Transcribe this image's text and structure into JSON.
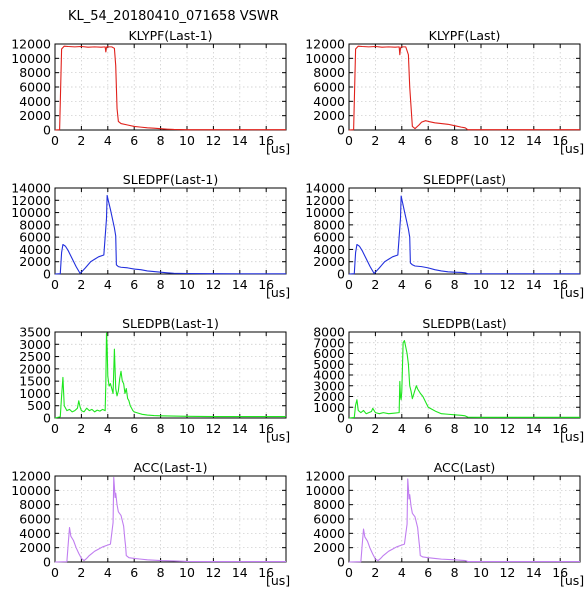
{
  "page": {
    "title": "KL_54_20180410_071658 VSWR"
  },
  "colors": {
    "red": "#e0211b",
    "blue": "#2230dd",
    "green": "#1ee61e",
    "violet": "#c07ef0"
  },
  "chart_data": [
    {
      "type": "line",
      "title": "KLYPF(Last-1)",
      "color": "red",
      "xlim": [
        0,
        17.5
      ],
      "ylim": [
        0,
        12000
      ],
      "xticks": [
        0,
        2,
        4,
        6,
        8,
        10,
        12,
        14,
        16
      ],
      "yticks": [
        0,
        2000,
        4000,
        6000,
        8000,
        10000,
        12000
      ],
      "xunit": "[us]",
      "series": [
        {
          "x": [
            0,
            0.35,
            0.5,
            0.7,
            1.0,
            1.5,
            2.0,
            2.5,
            3.0,
            3.5,
            3.8,
            3.85,
            3.9,
            3.95,
            4.0,
            4.3,
            4.5,
            4.6,
            4.7,
            4.8,
            5.0,
            5.5,
            6.0,
            6.5,
            7.0,
            7.5,
            8.0,
            8.5,
            9.0,
            10,
            12,
            14,
            16,
            17.5
          ],
          "y": [
            0,
            50,
            11300,
            11700,
            11650,
            11600,
            11650,
            11550,
            11600,
            11550,
            11600,
            10900,
            11500,
            11650,
            11600,
            11600,
            11400,
            9000,
            3000,
            1200,
            900,
            700,
            500,
            400,
            300,
            250,
            180,
            120,
            80,
            50,
            40,
            40,
            40,
            40
          ]
        }
      ]
    },
    {
      "type": "line",
      "title": "KLYPF(Last)",
      "color": "red",
      "xlim": [
        0,
        17.5
      ],
      "ylim": [
        0,
        12000
      ],
      "xticks": [
        0,
        2,
        4,
        6,
        8,
        10,
        12,
        14,
        16
      ],
      "yticks": [
        0,
        2000,
        4000,
        6000,
        8000,
        10000,
        12000
      ],
      "xunit": "[us]",
      "series": [
        {
          "x": [
            0,
            0.35,
            0.5,
            0.7,
            1.0,
            1.5,
            2.0,
            2.5,
            3.0,
            3.5,
            3.8,
            3.85,
            3.9,
            3.95,
            4.0,
            4.3,
            4.5,
            4.6,
            4.8,
            5.0,
            5.3,
            5.5,
            5.8,
            6.0,
            6.5,
            7.0,
            7.5,
            8.0,
            8.5,
            8.8,
            9.0,
            10,
            12,
            14,
            16,
            17.5
          ],
          "y": [
            0,
            50,
            11300,
            11700,
            11650,
            11600,
            11650,
            11550,
            11600,
            11550,
            11600,
            10500,
            11400,
            11600,
            11600,
            11600,
            10500,
            6000,
            500,
            200,
            700,
            1100,
            1300,
            1200,
            1000,
            900,
            800,
            600,
            400,
            300,
            40,
            40,
            40,
            40,
            40,
            40
          ]
        }
      ]
    },
    {
      "type": "line",
      "title": "SLEDPF(Last-1)",
      "color": "blue",
      "xlim": [
        0,
        17.5
      ],
      "ylim": [
        0,
        14000
      ],
      "xticks": [
        0,
        2,
        4,
        6,
        8,
        10,
        12,
        14,
        16
      ],
      "yticks": [
        0,
        2000,
        4000,
        6000,
        8000,
        10000,
        12000,
        14000
      ],
      "xunit": "[us]",
      "series": [
        {
          "x": [
            0,
            0.4,
            0.5,
            0.6,
            0.8,
            1.0,
            1.3,
            1.6,
            1.9,
            2.0,
            2.3,
            2.7,
            3.0,
            3.3,
            3.7,
            3.9,
            3.95,
            4.0,
            4.2,
            4.5,
            4.6,
            4.65,
            4.8,
            5.0,
            5.5,
            6.0,
            6.5,
            7.0,
            7.5,
            8.0,
            8.5,
            9.0,
            10,
            12,
            14,
            16,
            17.5
          ],
          "y": [
            0,
            50,
            3500,
            4800,
            4500,
            3800,
            2500,
            1200,
            100,
            300,
            1000,
            2000,
            2400,
            2800,
            3100,
            9000,
            12800,
            12300,
            10500,
            7500,
            6200,
            1500,
            1200,
            1100,
            1000,
            800,
            700,
            500,
            400,
            300,
            200,
            120,
            80,
            50,
            40,
            40,
            40
          ]
        }
      ]
    },
    {
      "type": "line",
      "title": "SLEDPF(Last)",
      "color": "blue",
      "xlim": [
        0,
        17.5
      ],
      "ylim": [
        0,
        14000
      ],
      "xticks": [
        0,
        2,
        4,
        6,
        8,
        10,
        12,
        14,
        16
      ],
      "yticks": [
        0,
        2000,
        4000,
        6000,
        8000,
        10000,
        12000,
        14000
      ],
      "xunit": "[us]",
      "series": [
        {
          "x": [
            0,
            0.4,
            0.5,
            0.6,
            0.8,
            1.0,
            1.3,
            1.6,
            1.9,
            2.0,
            2.3,
            2.7,
            3.0,
            3.3,
            3.7,
            3.9,
            3.95,
            4.0,
            4.2,
            4.5,
            4.6,
            4.65,
            4.8,
            5.0,
            5.5,
            6.0,
            6.5,
            7.0,
            7.5,
            8.0,
            8.5,
            8.8,
            9.0,
            10,
            12,
            14,
            16,
            17.5
          ],
          "y": [
            0,
            50,
            3500,
            4800,
            4500,
            3800,
            2500,
            1200,
            100,
            300,
            1000,
            2000,
            2400,
            2800,
            3100,
            9000,
            12700,
            12200,
            10200,
            7300,
            6000,
            1800,
            1500,
            1300,
            1200,
            1000,
            700,
            500,
            350,
            300,
            250,
            200,
            40,
            40,
            40,
            40,
            40,
            40
          ]
        }
      ]
    },
    {
      "type": "line",
      "title": "SLEDPB(Last-1)",
      "color": "green",
      "xlim": [
        0,
        17.5
      ],
      "ylim": [
        0,
        3500
      ],
      "xticks": [
        0,
        2,
        4,
        6,
        8,
        10,
        12,
        14,
        16
      ],
      "yticks": [
        0,
        500,
        1000,
        1500,
        2000,
        2500,
        3000,
        3500
      ],
      "xunit": "[us]",
      "series": [
        {
          "x": [
            0,
            0.4,
            0.5,
            0.6,
            0.7,
            0.9,
            1.1,
            1.3,
            1.5,
            1.7,
            1.8,
            1.9,
            2.0,
            2.2,
            2.4,
            2.6,
            2.8,
            3.0,
            3.2,
            3.4,
            3.6,
            3.8,
            3.85,
            3.9,
            3.95,
            4.0,
            4.1,
            4.2,
            4.4,
            4.5,
            4.6,
            4.7,
            4.8,
            4.9,
            5.0,
            5.1,
            5.2,
            5.3,
            5.4,
            5.5,
            5.6,
            5.7,
            5.8,
            5.9,
            6.0,
            6.3,
            6.6,
            7.0,
            7.5,
            8.0,
            9.0,
            10,
            12,
            14,
            16,
            17.5
          ],
          "y": [
            0,
            50,
            900,
            1650,
            500,
            300,
            350,
            250,
            300,
            400,
            700,
            450,
            300,
            250,
            400,
            300,
            350,
            250,
            320,
            280,
            350,
            300,
            1400,
            3450,
            2900,
            1700,
            1300,
            1400,
            1000,
            2800,
            1200,
            900,
            1100,
            1600,
            1900,
            1500,
            1400,
            1000,
            1200,
            800,
            700,
            500,
            400,
            300,
            250,
            200,
            150,
            120,
            100,
            90,
            80,
            70,
            60,
            60,
            60,
            60
          ]
        }
      ]
    },
    {
      "type": "line",
      "title": "SLEDPB(Last)",
      "color": "green",
      "xlim": [
        0,
        17.5
      ],
      "ylim": [
        0,
        8000
      ],
      "xticks": [
        0,
        2,
        4,
        6,
        8,
        10,
        12,
        14,
        16
      ],
      "yticks": [
        0,
        1000,
        2000,
        3000,
        4000,
        5000,
        6000,
        7000,
        8000
      ],
      "xunit": "[us]",
      "series": [
        {
          "x": [
            0,
            0.4,
            0.5,
            0.6,
            0.7,
            0.9,
            1.1,
            1.3,
            1.5,
            1.7,
            1.8,
            1.9,
            2.0,
            2.3,
            2.6,
            3.0,
            3.4,
            3.8,
            3.85,
            3.9,
            3.95,
            4.0,
            4.1,
            4.2,
            4.3,
            4.4,
            4.5,
            4.6,
            4.7,
            4.8,
            4.9,
            5.0,
            5.1,
            5.2,
            5.4,
            5.6,
            5.8,
            6.0,
            6.3,
            6.6,
            7.0,
            7.5,
            8.0,
            8.5,
            8.8,
            9.0,
            10,
            12,
            14,
            16,
            17.5
          ],
          "y": [
            0,
            50,
            1200,
            1700,
            700,
            500,
            700,
            400,
            500,
            600,
            900,
            700,
            500,
            400,
            500,
            400,
            450,
            500,
            3400,
            2000,
            1700,
            2500,
            7000,
            7200,
            6600,
            6000,
            5000,
            3000,
            2500,
            1800,
            2200,
            2600,
            3000,
            2700,
            2300,
            2000,
            1500,
            1000,
            800,
            600,
            400,
            350,
            300,
            250,
            200,
            80,
            60,
            60,
            60,
            60,
            60
          ]
        }
      ]
    },
    {
      "type": "line",
      "title": "ACC(Last-1)",
      "color": "violet",
      "xlim": [
        0,
        17.5
      ],
      "ylim": [
        0,
        12000
      ],
      "xticks": [
        0,
        2,
        4,
        6,
        8,
        10,
        12,
        14,
        16
      ],
      "yticks": [
        0,
        2000,
        4000,
        6000,
        8000,
        10000,
        12000
      ],
      "xunit": "[us]",
      "series": [
        {
          "x": [
            0,
            0.9,
            1.0,
            1.1,
            1.2,
            1.4,
            1.6,
            1.8,
            2.0,
            2.2,
            2.4,
            2.6,
            2.8,
            3.0,
            3.3,
            3.6,
            3.9,
            4.2,
            4.4,
            4.45,
            4.5,
            4.55,
            4.6,
            4.7,
            4.8,
            5.0,
            5.2,
            5.3,
            5.35,
            5.4,
            5.6,
            6.0,
            6.5,
            7.0,
            8.0,
            9.0,
            10,
            12,
            14,
            16,
            17.5
          ],
          "y": [
            0,
            50,
            2500,
            4800,
            3600,
            3000,
            2000,
            1200,
            500,
            200,
            500,
            900,
            1200,
            1500,
            1800,
            2100,
            2300,
            2500,
            5500,
            11800,
            10500,
            9000,
            9600,
            8000,
            7000,
            6500,
            5000,
            3000,
            2200,
            900,
            600,
            500,
            400,
            300,
            200,
            150,
            80,
            60,
            60,
            60,
            60
          ]
        }
      ]
    },
    {
      "type": "line",
      "title": "ACC(Last)",
      "color": "violet",
      "xlim": [
        0,
        17.5
      ],
      "ylim": [
        0,
        12000
      ],
      "xticks": [
        0,
        2,
        4,
        6,
        8,
        10,
        12,
        14,
        16
      ],
      "yticks": [
        0,
        2000,
        4000,
        6000,
        8000,
        10000,
        12000
      ],
      "xunit": "[us]",
      "series": [
        {
          "x": [
            0,
            0.9,
            1.0,
            1.1,
            1.2,
            1.4,
            1.6,
            1.8,
            2.0,
            2.2,
            2.4,
            2.6,
            2.8,
            3.0,
            3.3,
            3.6,
            3.9,
            4.2,
            4.4,
            4.45,
            4.5,
            4.55,
            4.6,
            4.7,
            4.8,
            5.0,
            5.2,
            5.3,
            5.35,
            5.4,
            5.6,
            6.0,
            6.5,
            7.0,
            8.0,
            8.8,
            9.0,
            10,
            12,
            14,
            16,
            17.5
          ],
          "y": [
            0,
            50,
            2400,
            4600,
            3500,
            2900,
            1900,
            1100,
            400,
            200,
            500,
            900,
            1200,
            1500,
            1800,
            2100,
            2300,
            2500,
            5300,
            11600,
            10300,
            8800,
            9400,
            7800,
            6800,
            6300,
            4800,
            2900,
            2100,
            900,
            700,
            600,
            500,
            400,
            300,
            200,
            60,
            60,
            60,
            60,
            60,
            60
          ]
        }
      ]
    }
  ]
}
